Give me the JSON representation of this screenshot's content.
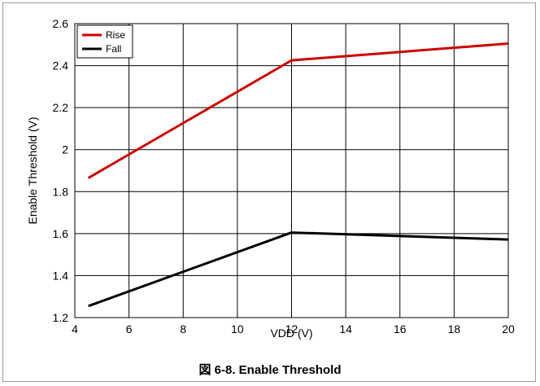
{
  "caption": "図 6-8. Enable Threshold",
  "chart_data": {
    "type": "line",
    "title": "",
    "xlabel": "VDD (V)",
    "ylabel": "Enable Threshold (V)",
    "xlim": [
      4,
      20
    ],
    "ylim": [
      1.2,
      2.6
    ],
    "xticks": [
      4,
      6,
      8,
      10,
      12,
      14,
      16,
      18,
      20
    ],
    "yticks": [
      1.2,
      1.4,
      1.6,
      1.8,
      2,
      2.2,
      2.4,
      2.6
    ],
    "grid": true,
    "legend_position": "top-left",
    "series": [
      {
        "name": "Rise",
        "color": "#cc0000",
        "x": [
          4.5,
          12,
          20
        ],
        "y": [
          1.865,
          2.425,
          2.505
        ]
      },
      {
        "name": "Fall",
        "color": "#000000",
        "x": [
          4.5,
          12,
          20
        ],
        "y": [
          1.255,
          1.605,
          1.572
        ]
      }
    ]
  }
}
